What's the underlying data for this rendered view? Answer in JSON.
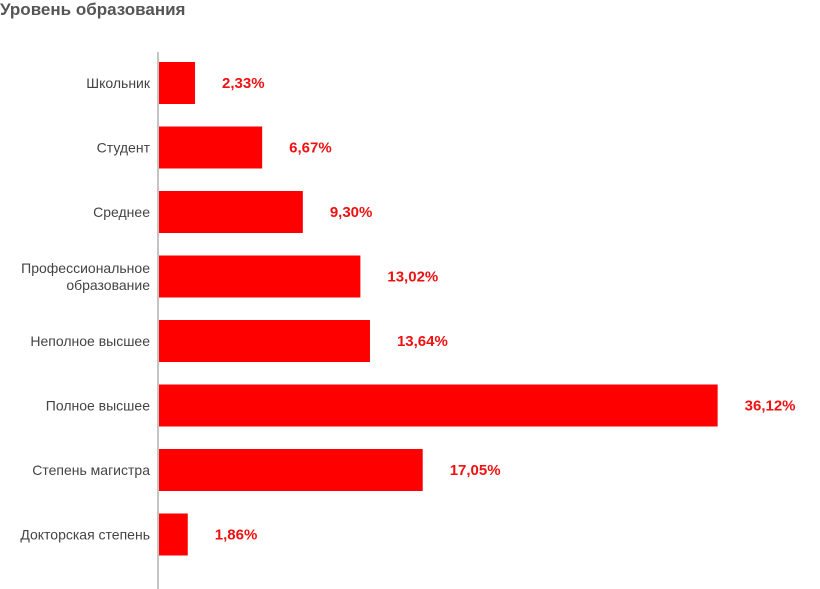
{
  "chart_data": {
    "type": "bar",
    "orientation": "horizontal",
    "title": "Уровень образования",
    "categories": [
      [
        "Школьник"
      ],
      [
        "Студент"
      ],
      [
        "Среднее"
      ],
      [
        "Профессиональное",
        "образование"
      ],
      [
        "Неполное высшее"
      ],
      [
        "Полное высшее"
      ],
      [
        "Степень магистра"
      ],
      [
        "Докторская степень"
      ]
    ],
    "values": [
      2.33,
      6.67,
      9.3,
      13.02,
      13.64,
      36.12,
      17.05,
      1.86
    ],
    "value_labels": [
      "2,33%",
      "6,67%",
      "9,30%",
      "13,02%",
      "13,64%",
      "36,12%",
      "17,05%",
      "1,86%"
    ],
    "unit": "%",
    "xlim": [
      0,
      37.5
    ],
    "colors": {
      "bar": "#ff0000",
      "value_label": "#ee1111",
      "axis": "#b0b0b0"
    },
    "grid": false,
    "legend": "none"
  }
}
